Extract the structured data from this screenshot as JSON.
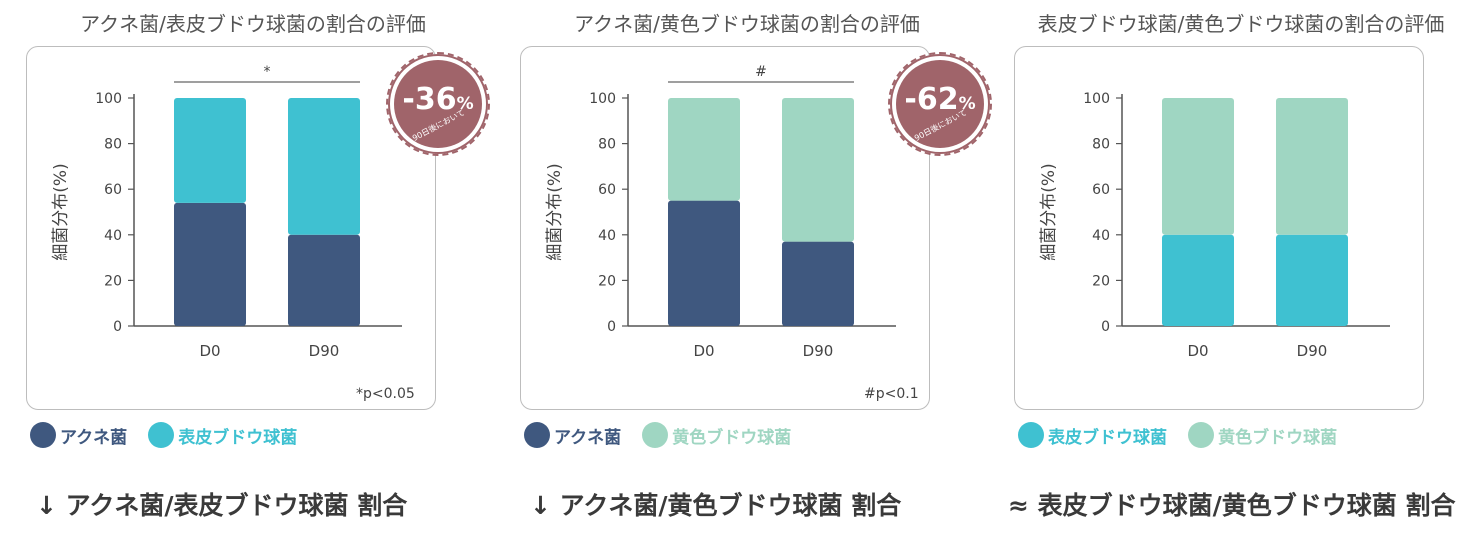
{
  "colors": {
    "acne": "#3f587f",
    "epi": "#3fc1d1",
    "aureus": "#9fd6c2",
    "badge": "#a0646a"
  },
  "legend_names": {
    "acne": "アクネ菌",
    "epi": "表皮ブドウ球菌",
    "aureus": "黄色ブドウ球菌"
  },
  "panels": [
    {
      "title": "アクネ菌/表皮ブドウ球菌の割合の評価",
      "ylabel": "細菌分布(%)",
      "significance": "*",
      "note": "*p<0.05",
      "badge": {
        "value": "-36",
        "unit": "%",
        "sub": "90日後において"
      },
      "summary": "↓ アクネ菌/表皮ブドウ球菌 割合"
    },
    {
      "title": "アクネ菌/黄色ブドウ球菌の割合の評価",
      "ylabel": "細菌分布(%)",
      "significance": "#",
      "note": "#p<0.1",
      "badge": {
        "value": "-62",
        "unit": "%",
        "sub": "90日後において"
      },
      "summary": "↓ アクネ菌/黄色ブドウ球菌 割合"
    },
    {
      "title": "表皮ブドウ球菌/黄色ブドウ球菌の割合の評価",
      "ylabel": "細菌分布(%)",
      "summary": "≈ 表皮ブドウ球菌/黄色ブドウ球菌 割合"
    }
  ],
  "chart_data": [
    {
      "type": "bar",
      "stacked": true,
      "title": "アクネ菌/表皮ブドウ球菌の割合の評価",
      "ylabel": "細菌分布(%)",
      "categories": [
        "D0",
        "D90"
      ],
      "yticks": [
        0,
        20,
        40,
        60,
        80,
        100
      ],
      "ylim": [
        0,
        100
      ],
      "series": [
        {
          "name": "アクネ菌",
          "color": "#3f587f",
          "values": [
            54,
            40
          ]
        },
        {
          "name": "表皮ブドウ球菌",
          "color": "#3fc1d1",
          "values": [
            46,
            60
          ]
        }
      ]
    },
    {
      "type": "bar",
      "stacked": true,
      "title": "アクネ菌/黄色ブドウ球菌の割合の評価",
      "ylabel": "細菌分布(%)",
      "categories": [
        "D0",
        "D90"
      ],
      "yticks": [
        0,
        20,
        40,
        60,
        80,
        100
      ],
      "ylim": [
        0,
        100
      ],
      "series": [
        {
          "name": "アクネ菌",
          "color": "#3f587f",
          "values": [
            55,
            37
          ]
        },
        {
          "name": "黄色ブドウ球菌",
          "color": "#9fd6c2",
          "values": [
            45,
            63
          ]
        }
      ]
    },
    {
      "type": "bar",
      "stacked": true,
      "title": "表皮ブドウ球菌/黄色ブドウ球菌の割合の評価",
      "ylabel": "細菌分布(%)",
      "categories": [
        "D0",
        "D90"
      ],
      "yticks": [
        0,
        20,
        40,
        60,
        80,
        100
      ],
      "ylim": [
        0,
        100
      ],
      "series": [
        {
          "name": "表皮ブドウ球菌",
          "color": "#3fc1d1",
          "values": [
            40,
            40
          ]
        },
        {
          "name": "黄色ブドウ球菌",
          "color": "#9fd6c2",
          "values": [
            60,
            60
          ]
        }
      ]
    }
  ]
}
